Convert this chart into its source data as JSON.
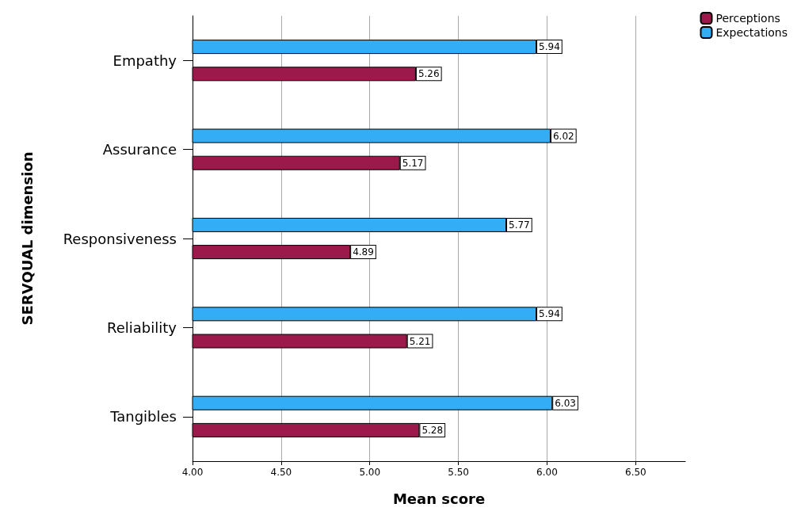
{
  "chart_data": {
    "type": "bar",
    "orientation": "horizontal",
    "xlabel": "Mean score",
    "ylabel": "SERVQUAL dimension",
    "categories": [
      "Empathy",
      "Assurance",
      "Responsiveness",
      "Reliability",
      "Tangibles"
    ],
    "series": [
      {
        "name": "Perceptions",
        "color": "#9b1a4b",
        "values": [
          5.26,
          5.17,
          4.89,
          5.21,
          5.28
        ]
      },
      {
        "name": "Expectations",
        "color": "#33adf5",
        "values": [
          5.94,
          6.02,
          5.77,
          5.94,
          6.03
        ]
      }
    ],
    "xlim": [
      4,
      6.78
    ],
    "xticks": [
      {
        "value": 4,
        "label": "4.00"
      },
      {
        "value": 4.5,
        "label": "4.50"
      },
      {
        "value": 5,
        "label": "5.00"
      },
      {
        "value": 5.5,
        "label": "5.50"
      },
      {
        "value": 6,
        "label": "6.00"
      },
      {
        "value": 6.5,
        "label": "6.50"
      }
    ],
    "grid": "x",
    "legend": "top right",
    "data_labels": true
  }
}
